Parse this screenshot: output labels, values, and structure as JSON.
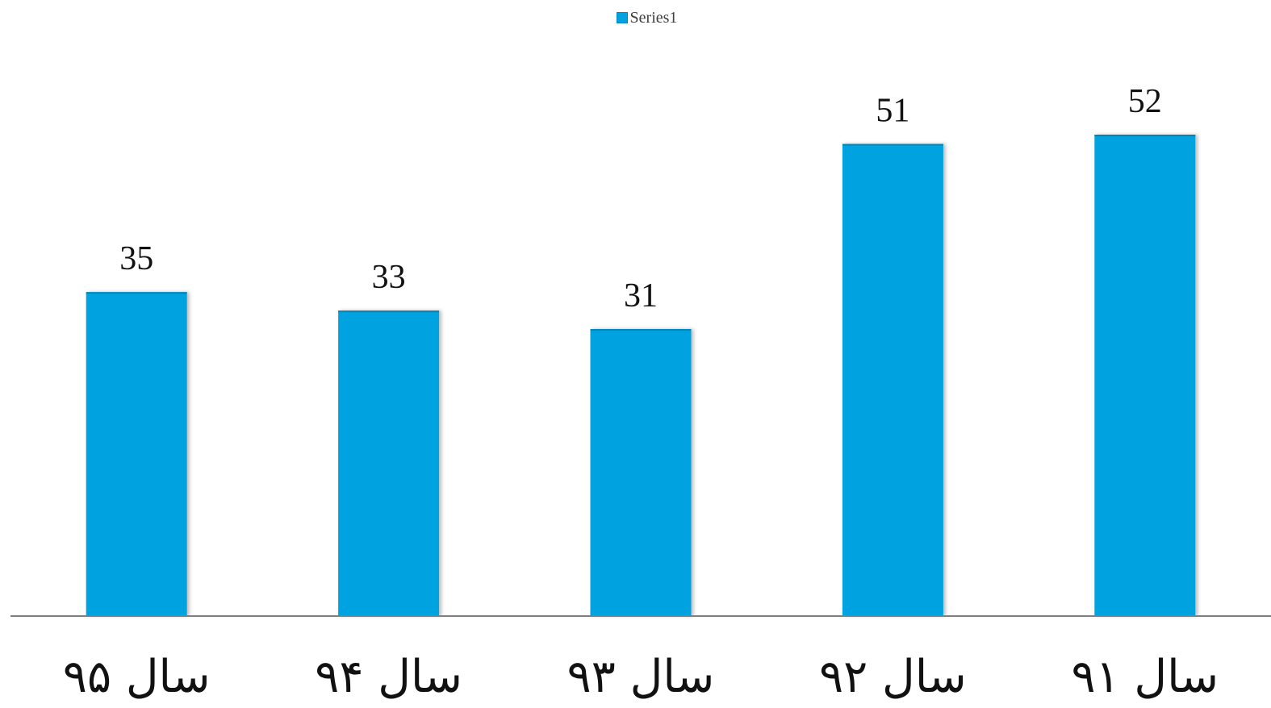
{
  "chart_data": {
    "type": "bar",
    "categories": [
      "سال ۹۵",
      "سال ۹۴",
      "سال ۹۳",
      "سال ۹۲",
      "سال ۹۱"
    ],
    "series": [
      {
        "name": "Series1",
        "values": [
          35,
          33,
          31,
          51,
          52
        ],
        "color": "#00A3E0"
      }
    ],
    "title": "",
    "xlabel": "",
    "ylabel": "",
    "ylim": [
      0,
      52
    ],
    "grid": false,
    "legend": "top-center",
    "data_labels": true,
    "value_axis_visible": false
  }
}
